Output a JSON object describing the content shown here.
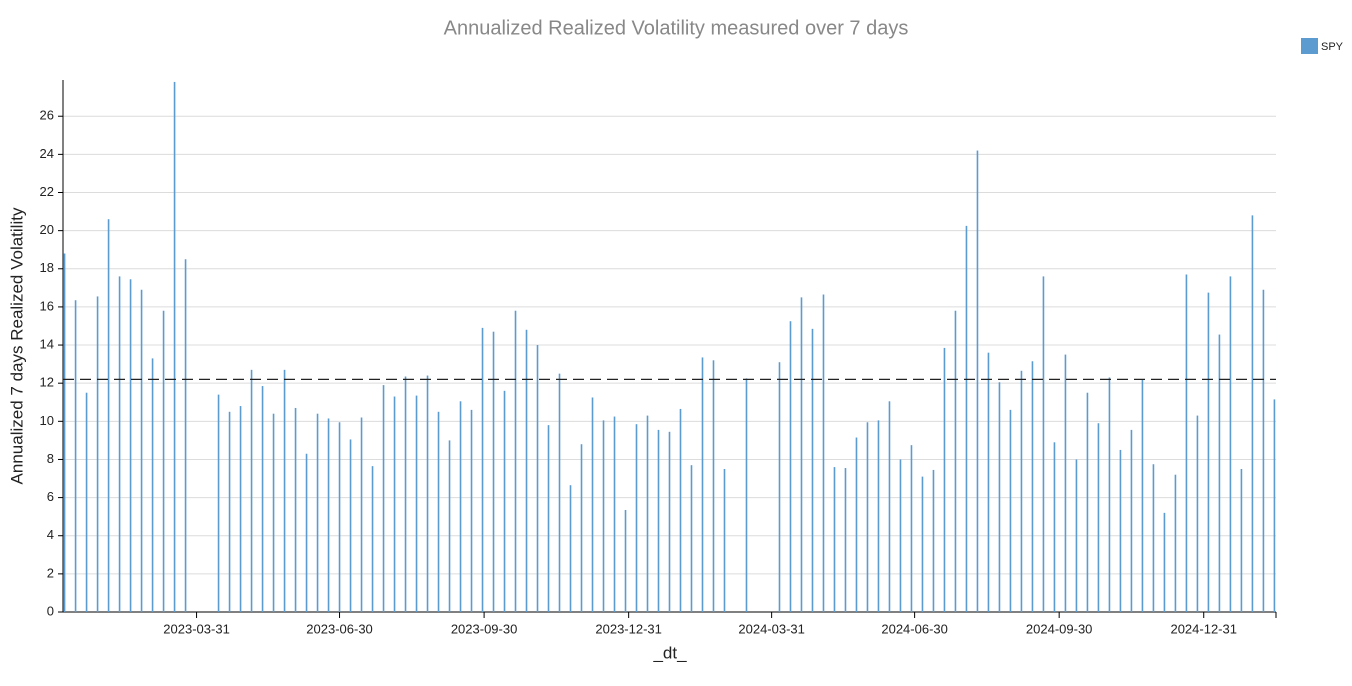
{
  "chart_data": {
    "type": "bar",
    "title": "Annualized Realized Volatility measured over 7 days",
    "x_label": "_dt_",
    "y_label": "Annualized 7 days Realized Volatility",
    "x": [
      "2023-01-06",
      "2023-01-13",
      "2023-01-20",
      "2023-01-27",
      "2023-02-03",
      "2023-02-10",
      "2023-02-17",
      "2023-02-24",
      "2023-03-03",
      "2023-03-10",
      "2023-03-17",
      "2023-03-24",
      "2023-04-14",
      "2023-04-21",
      "2023-04-28",
      "2023-05-05",
      "2023-05-12",
      "2023-05-19",
      "2023-05-26",
      "2023-06-02",
      "2023-06-09",
      "2023-06-16",
      "2023-06-23",
      "2023-06-30",
      "2023-07-07",
      "2023-07-14",
      "2023-07-21",
      "2023-07-28",
      "2023-08-04",
      "2023-08-11",
      "2023-08-18",
      "2023-08-25",
      "2023-09-01",
      "2023-09-08",
      "2023-09-15",
      "2023-09-22",
      "2023-09-29",
      "2023-10-06",
      "2023-10-13",
      "2023-10-20",
      "2023-10-27",
      "2023-11-03",
      "2023-11-10",
      "2023-11-17",
      "2023-11-24",
      "2023-12-01",
      "2023-12-08",
      "2023-12-15",
      "2023-12-22",
      "2023-12-29",
      "2024-01-05",
      "2024-01-12",
      "2024-01-19",
      "2024-01-26",
      "2024-02-02",
      "2024-02-09",
      "2024-02-16",
      "2024-02-23",
      "2024-03-01",
      "2024-03-15",
      "2024-04-05",
      "2024-04-12",
      "2024-04-19",
      "2024-04-26",
      "2024-05-03",
      "2024-05-10",
      "2024-05-17",
      "2024-05-24",
      "2024-05-31",
      "2024-06-07",
      "2024-06-14",
      "2024-06-21",
      "2024-06-28",
      "2024-07-05",
      "2024-07-12",
      "2024-07-19",
      "2024-07-26",
      "2024-08-02",
      "2024-08-09",
      "2024-08-16",
      "2024-08-23",
      "2024-08-30",
      "2024-09-06",
      "2024-09-13",
      "2024-09-20",
      "2024-09-27",
      "2024-10-04",
      "2024-10-11",
      "2024-10-18",
      "2024-10-25",
      "2024-11-01",
      "2024-11-08",
      "2024-11-15",
      "2024-11-22",
      "2024-11-29",
      "2024-12-06",
      "2024-12-13",
      "2024-12-20",
      "2024-12-27",
      "2025-01-03",
      "2025-01-10",
      "2025-01-17",
      "2025-01-24",
      "2025-01-31",
      "2025-02-07",
      "2025-02-14"
    ],
    "series": [
      {
        "name": "SPY",
        "color": "#5b9bd0",
        "values": [
          18.8,
          16.35,
          11.5,
          16.55,
          20.6,
          17.6,
          17.45,
          16.9,
          13.3,
          15.8,
          27.8,
          18.5,
          11.4,
          10.5,
          10.8,
          12.7,
          11.85,
          10.4,
          12.7,
          10.7,
          8.3,
          10.4,
          10.15,
          9.95,
          9.05,
          10.2,
          7.65,
          11.9,
          11.3,
          12.35,
          11.35,
          12.4,
          10.5,
          9.0,
          11.05,
          10.6,
          14.9,
          14.7,
          11.6,
          15.8,
          14.8,
          14.0,
          9.8,
          12.5,
          6.65,
          8.8,
          11.25,
          10.05,
          10.25,
          5.35,
          9.85,
          10.3,
          9.55,
          9.45,
          10.65,
          7.7,
          13.35,
          13.2,
          7.5,
          12.25,
          13.1,
          15.25,
          16.5,
          14.85,
          16.65,
          7.6,
          7.55,
          9.15,
          9.95,
          10.05,
          11.05,
          8.0,
          8.75,
          7.1,
          7.45,
          13.85,
          15.8,
          20.25,
          24.2,
          13.6,
          12.05,
          10.6,
          12.65,
          13.15,
          17.6,
          8.9,
          13.5,
          8.0,
          11.5,
          9.9,
          12.3,
          8.5,
          9.55,
          12.2,
          7.75,
          5.2,
          7.2,
          17.7,
          10.3,
          16.75,
          14.55,
          17.6,
          7.5,
          20.8,
          16.9,
          11.15
        ]
      }
    ],
    "reference_line": 12.2,
    "xlim": [
      "2023-01-05",
      "2025-02-15"
    ],
    "xticks": [
      "2023-03-31",
      "2023-06-30",
      "2023-09-30",
      "2023-12-31",
      "2024-03-31",
      "2024-06-30",
      "2024-09-30",
      "2024-12-31"
    ],
    "ylim": [
      0,
      27.9
    ],
    "yticks": [
      0,
      2,
      4,
      6,
      8,
      10,
      12,
      14,
      16,
      18,
      20,
      22,
      24,
      26
    ],
    "grid": true,
    "legend": "top-right"
  }
}
